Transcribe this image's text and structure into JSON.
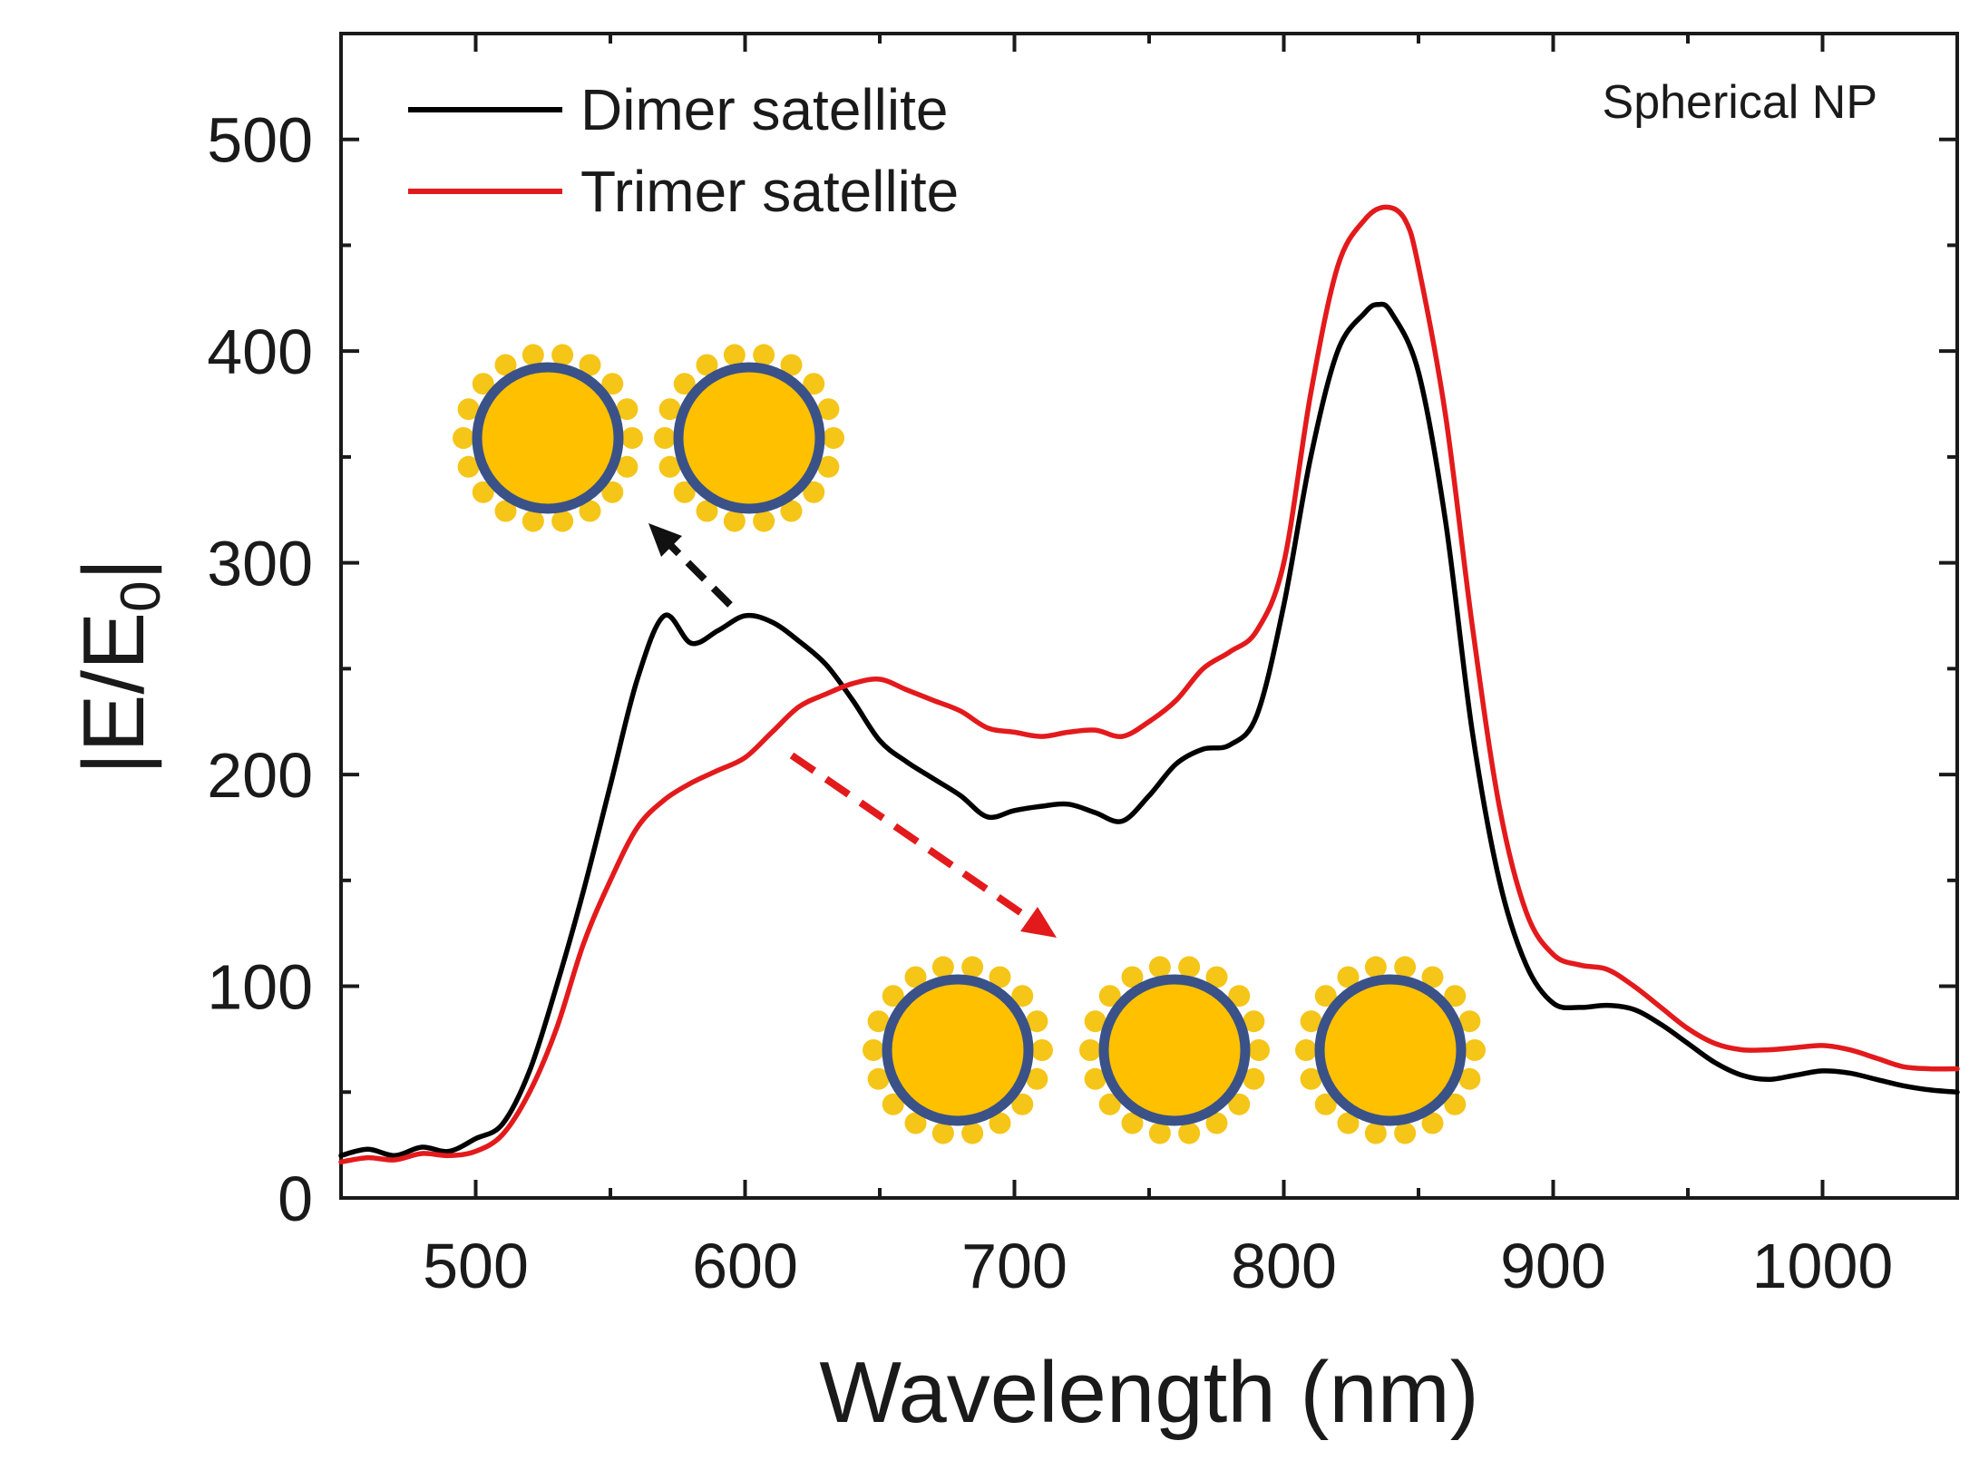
{
  "chart_data": {
    "type": "line",
    "title": "",
    "annotation": "Spherical NP",
    "xlabel": "Wavelength (nm)",
    "ylabel_main": "|E/E",
    "ylabel_sub": "0",
    "ylabel_end": "|",
    "xlim": [
      450,
      1050
    ],
    "ylim": [
      0,
      550
    ],
    "xticks": [
      500,
      600,
      700,
      800,
      900,
      1000
    ],
    "yticks": [
      0,
      100,
      200,
      300,
      400,
      500
    ],
    "x_tick_labels": [
      "500",
      "600",
      "700",
      "800",
      "900",
      "1000"
    ],
    "y_tick_labels": [
      "0",
      "100",
      "200",
      "300",
      "400",
      "500"
    ],
    "legend_position": "top-left",
    "series": [
      {
        "name": "Dimer satellite",
        "color": "#000000",
        "x": [
          450,
          460,
          470,
          480,
          490,
          500,
          510,
          520,
          530,
          540,
          550,
          560,
          570,
          580,
          590,
          600,
          610,
          620,
          630,
          640,
          650,
          660,
          670,
          680,
          690,
          700,
          710,
          720,
          730,
          740,
          750,
          760,
          770,
          780,
          790,
          800,
          810,
          820,
          830,
          835,
          840,
          850,
          860,
          870,
          880,
          890,
          900,
          910,
          920,
          930,
          940,
          950,
          960,
          970,
          980,
          990,
          1000,
          1010,
          1020,
          1030,
          1040,
          1050
        ],
        "values": [
          20,
          23,
          20,
          24,
          22,
          28,
          35,
          60,
          100,
          145,
          195,
          245,
          275,
          262,
          268,
          275,
          272,
          263,
          252,
          235,
          216,
          206,
          198,
          190,
          180,
          183,
          185,
          186,
          182,
          178,
          190,
          205,
          212,
          214,
          228,
          280,
          350,
          400,
          418,
          422,
          418,
          390,
          320,
          220,
          150,
          110,
          92,
          90,
          91,
          89,
          82,
          73,
          64,
          58,
          56,
          58,
          60,
          59,
          56,
          53,
          51,
          50
        ]
      },
      {
        "name": "Trimer satellite",
        "color": "#e31a1c",
        "x": [
          450,
          460,
          470,
          480,
          490,
          500,
          510,
          520,
          530,
          540,
          550,
          560,
          570,
          580,
          590,
          600,
          610,
          620,
          630,
          640,
          650,
          660,
          670,
          680,
          690,
          700,
          710,
          720,
          730,
          740,
          750,
          760,
          770,
          780,
          790,
          800,
          810,
          820,
          830,
          838,
          845,
          850,
          860,
          870,
          880,
          890,
          900,
          910,
          920,
          930,
          940,
          950,
          960,
          970,
          980,
          990,
          1000,
          1010,
          1020,
          1030,
          1040,
          1050
        ],
        "values": [
          17,
          19,
          18,
          21,
          20,
          22,
          30,
          50,
          80,
          120,
          150,
          175,
          188,
          196,
          202,
          208,
          220,
          232,
          238,
          243,
          245,
          240,
          235,
          230,
          222,
          220,
          218,
          220,
          221,
          218,
          225,
          235,
          250,
          258,
          268,
          300,
          380,
          440,
          462,
          468,
          462,
          440,
          370,
          270,
          185,
          135,
          115,
          110,
          108,
          100,
          90,
          80,
          73,
          70,
          70,
          71,
          72,
          70,
          66,
          62,
          61,
          61
        ]
      }
    ]
  }
}
